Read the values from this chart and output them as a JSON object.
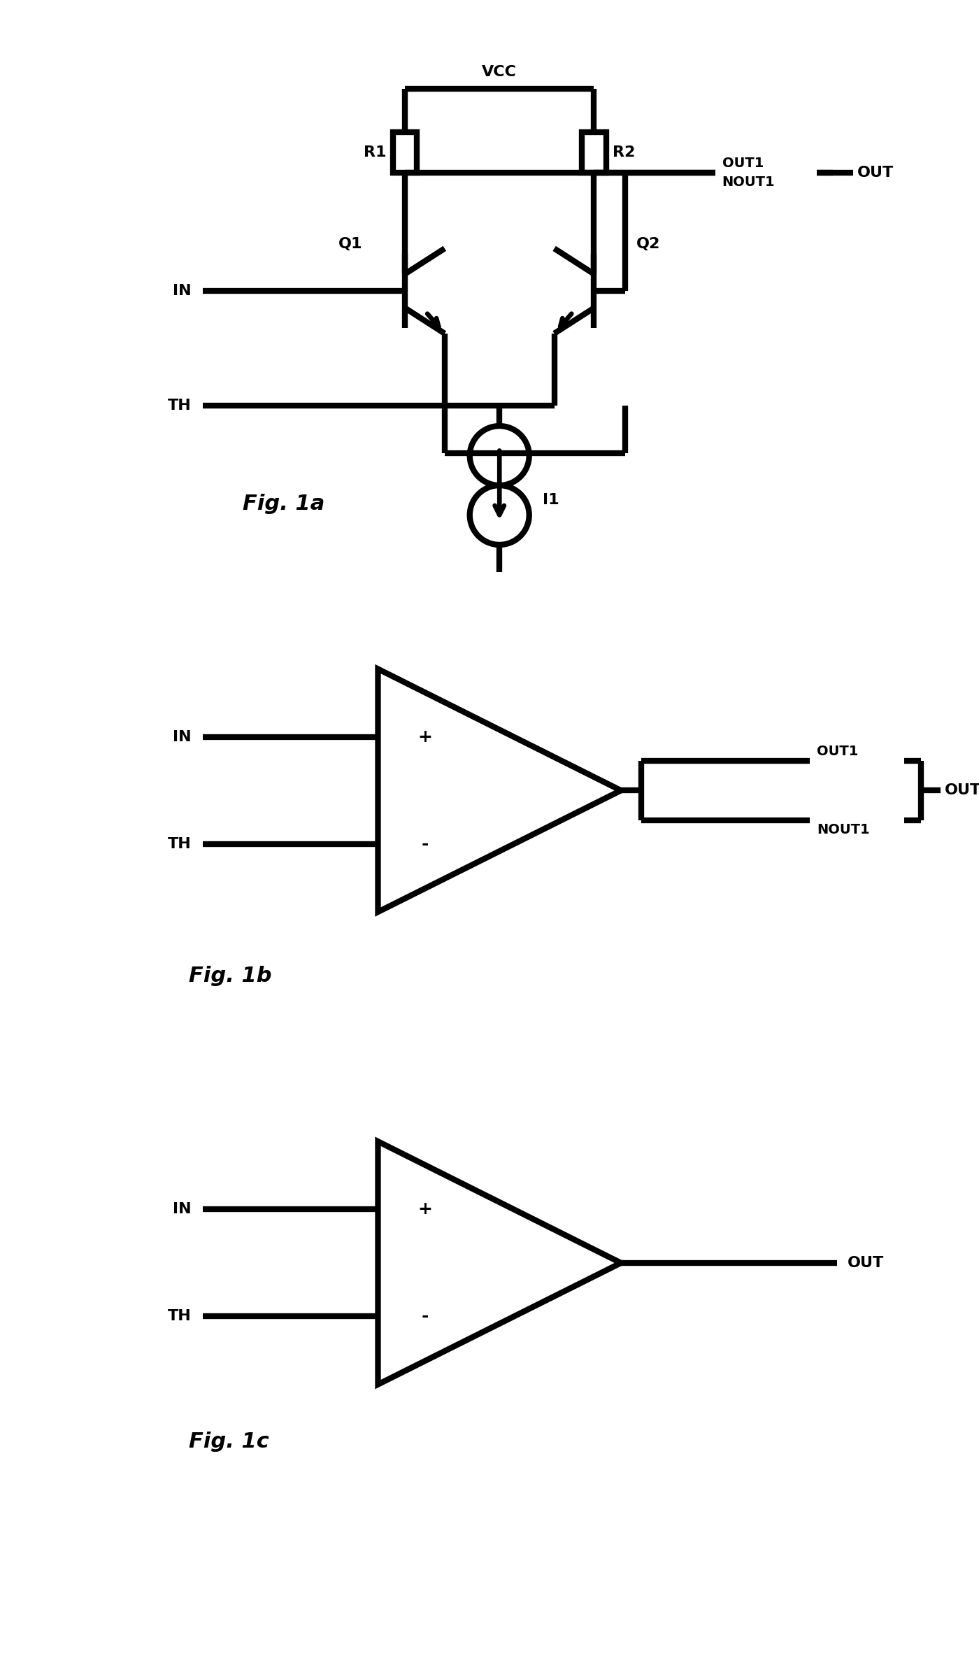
{
  "bg_color": "#ffffff",
  "line_color": "#000000",
  "lw": 3.0,
  "fig_width": 7.0,
  "fig_height": 11.94,
  "dpi": 200,
  "fig1a": {
    "label": "Fig. 1a",
    "vcc_text": "VCC",
    "r1_text": "R1",
    "r2_text": "R2",
    "q1_text": "Q1",
    "q2_text": "Q2",
    "in_text": "IN",
    "th_text": "TH",
    "out1_text": "OUT1",
    "nout1_text": "NOUT1",
    "out_text": "OUT",
    "i1_text": "I1"
  },
  "fig1b": {
    "label": "Fig. 1b",
    "in_text": "IN",
    "th_text": "TH",
    "plus_text": "+",
    "minus_text": "-",
    "out1_text": "OUT1",
    "nout1_text": "NOUT1",
    "out_text": "OUT"
  },
  "fig1c": {
    "label": "Fig. 1c",
    "in_text": "IN",
    "th_text": "TH",
    "plus_text": "+",
    "minus_text": "-",
    "out_text": "OUT"
  }
}
